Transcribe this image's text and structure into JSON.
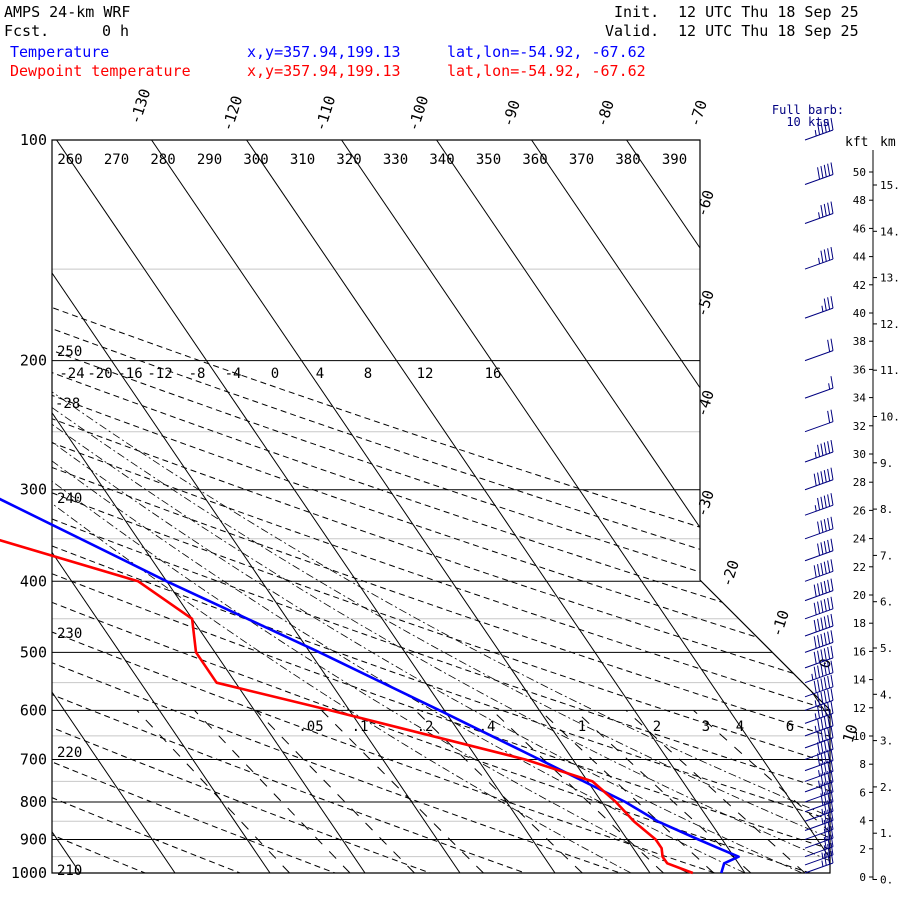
{
  "header": {
    "model": "AMPS 24-km WRF",
    "fcst_label": "Fcst.",
    "fcst_value": "0 h",
    "init_label": "Init.",
    "init_value": "12 UTC Thu 18 Sep 25",
    "valid_label": "Valid.",
    "valid_value": "12 UTC Thu 18 Sep 25"
  },
  "legend": [
    {
      "name": "Temperature",
      "xy": "x,y=357.94,199.13",
      "latlon": "lat,lon=-54.92, -67.62",
      "color": "#0000ff"
    },
    {
      "name": "Dewpoint temperature",
      "xy": "x,y=357.94,199.13",
      "latlon": "lat,lon=-54.92, -67.62",
      "color": "#ff0000"
    }
  ],
  "chart_data": {
    "type": "line",
    "subtype": "skew-t log-p diagram",
    "pressure_levels": [
      100,
      200,
      300,
      400,
      500,
      600,
      700,
      800,
      900,
      1000
    ],
    "pressure_labels": [
      "100",
      "200",
      "300",
      "400",
      "500",
      "600",
      "700",
      "800",
      "900",
      "1000"
    ],
    "ylim": [
      1000,
      100
    ],
    "y_scale": "log",
    "isotherm_labels": [
      "-130",
      "-120",
      "-110",
      "-100",
      "-90",
      "-80",
      "-70",
      "-60",
      "-50",
      "-40",
      "-30",
      "-20",
      "-10",
      "0",
      "10"
    ],
    "potential_temp_labels": [
      "260",
      "270",
      "280",
      "290",
      "300",
      "310",
      "320",
      "330",
      "340",
      "350",
      "360",
      "370",
      "380",
      "390"
    ],
    "mixing_ratio_upper_labels": [
      "-24",
      "-20",
      "-16",
      "-12",
      "-8",
      "-4",
      "0",
      "4",
      "8",
      "12",
      "16"
    ],
    "mixing_ratio_lower_labels": [
      ".05",
      ".1",
      ".2",
      ".4",
      "1",
      "2",
      "3",
      "4",
      "6"
    ],
    "dry_adiabat_side_labels": [
      "250",
      "-28",
      "240",
      "230",
      "220",
      "210"
    ],
    "barb_note": "Full barb:\n10 kts",
    "height_axis": {
      "kft_label": "kft",
      "km_label": "km",
      "kft_ticks": [
        "50",
        "48",
        "46",
        "44",
        "42",
        "40",
        "38",
        "36",
        "34",
        "32",
        "30",
        "28",
        "26",
        "24",
        "22",
        "20",
        "18",
        "16",
        "14",
        "12",
        "10",
        "8",
        "6",
        "4",
        "2",
        "0"
      ],
      "km_ticks": [
        "15.",
        "14.",
        "13.",
        "12.",
        "11.",
        "10.",
        "9.",
        "8.",
        "7.",
        "6.",
        "5.",
        "4.",
        "3.",
        "2.",
        "1.",
        "0."
      ]
    },
    "series": [
      {
        "name": "Temperature",
        "color": "#0000ff",
        "points": [
          [
            1000,
            -2.5
          ],
          [
            970,
            -1.5
          ],
          [
            950,
            0.5
          ],
          [
            925,
            -1.0
          ],
          [
            900,
            -2.5
          ],
          [
            850,
            -5.5
          ],
          [
            800,
            -7.5
          ],
          [
            700,
            -13.5
          ],
          [
            600,
            -20.5
          ],
          [
            500,
            -29
          ],
          [
            400,
            -40
          ],
          [
            300,
            -53
          ],
          [
            250,
            -58
          ],
          [
            200,
            -58
          ],
          [
            150,
            -61
          ],
          [
            100,
            -70
          ]
        ]
      },
      {
        "name": "Dewpoint temperature",
        "color": "#ff0000",
        "points": [
          [
            1000,
            -5.5
          ],
          [
            970,
            -7.5
          ],
          [
            950,
            -7.5
          ],
          [
            925,
            -7
          ],
          [
            900,
            -7
          ],
          [
            850,
            -8
          ],
          [
            800,
            -8.5
          ],
          [
            750,
            -9.5
          ],
          [
            700,
            -15
          ],
          [
            600,
            -32
          ],
          [
            550,
            -42
          ],
          [
            500,
            -42
          ],
          [
            450,
            -40
          ],
          [
            400,
            -43
          ],
          [
            350,
            -55
          ],
          [
            300,
            -63
          ],
          [
            250,
            -70
          ],
          [
            200,
            -78
          ],
          [
            150,
            -84
          ],
          [
            100,
            -87
          ]
        ]
      }
    ],
    "wind_barbs_pressure": [
      100,
      115,
      130,
      150,
      175,
      200,
      225,
      250,
      275,
      300,
      325,
      350,
      375,
      400,
      425,
      450,
      475,
      500,
      525,
      550,
      575,
      600,
      625,
      650,
      675,
      700,
      725,
      750,
      775,
      800,
      825,
      850,
      875,
      900,
      925,
      950,
      975,
      1000
    ],
    "wind_barbs_kts": [
      55,
      50,
      45,
      45,
      35,
      20,
      15,
      20,
      55,
      60,
      55,
      50,
      50,
      60,
      60,
      60,
      60,
      60,
      60,
      65,
      60,
      55,
      55,
      55,
      50,
      50,
      50,
      45,
      45,
      40,
      40,
      35,
      35,
      30,
      30,
      30,
      35,
      35
    ]
  }
}
